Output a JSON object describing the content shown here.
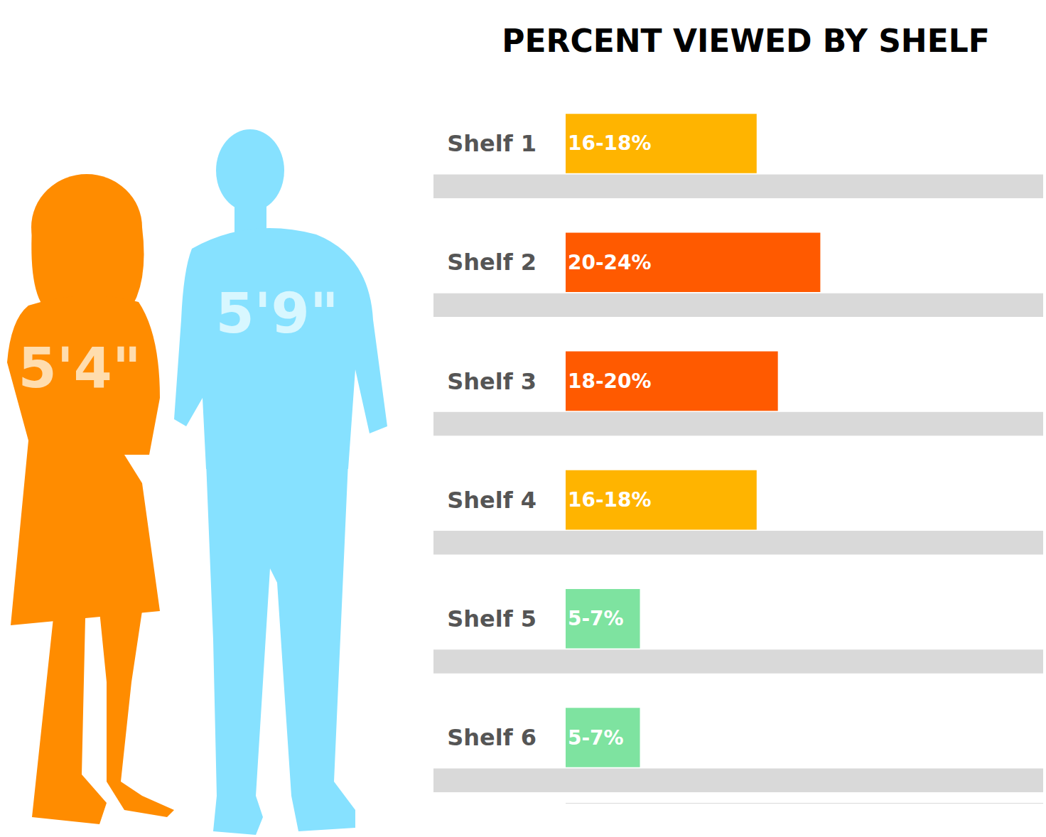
{
  "chart_data": {
    "type": "bar",
    "orientation": "horizontal",
    "title": "PERCENT VIEWED BY SHELF",
    "categories": [
      "Shelf 1",
      "Shelf 2",
      "Shelf 3",
      "Shelf 4",
      "Shelf 5",
      "Shelf 6"
    ],
    "values": [
      18,
      24,
      20,
      18,
      7,
      7
    ],
    "value_labels": [
      "16-18%",
      "20-24%",
      "18-20%",
      "16-18%",
      "5-7%",
      "5-7%"
    ],
    "colors": [
      "#ffb400",
      "#ff5a00",
      "#ff5a00",
      "#ffb400",
      "#7ee3a0",
      "#7ee3a0"
    ],
    "xlim": [
      0,
      45
    ],
    "data_labels": true,
    "tick_labels": "y",
    "grid": false
  },
  "figures": [
    {
      "label": "5'4\"",
      "color": "#ff8c00"
    },
    {
      "label": "5'9\"",
      "color": "#86e1ff"
    }
  ]
}
